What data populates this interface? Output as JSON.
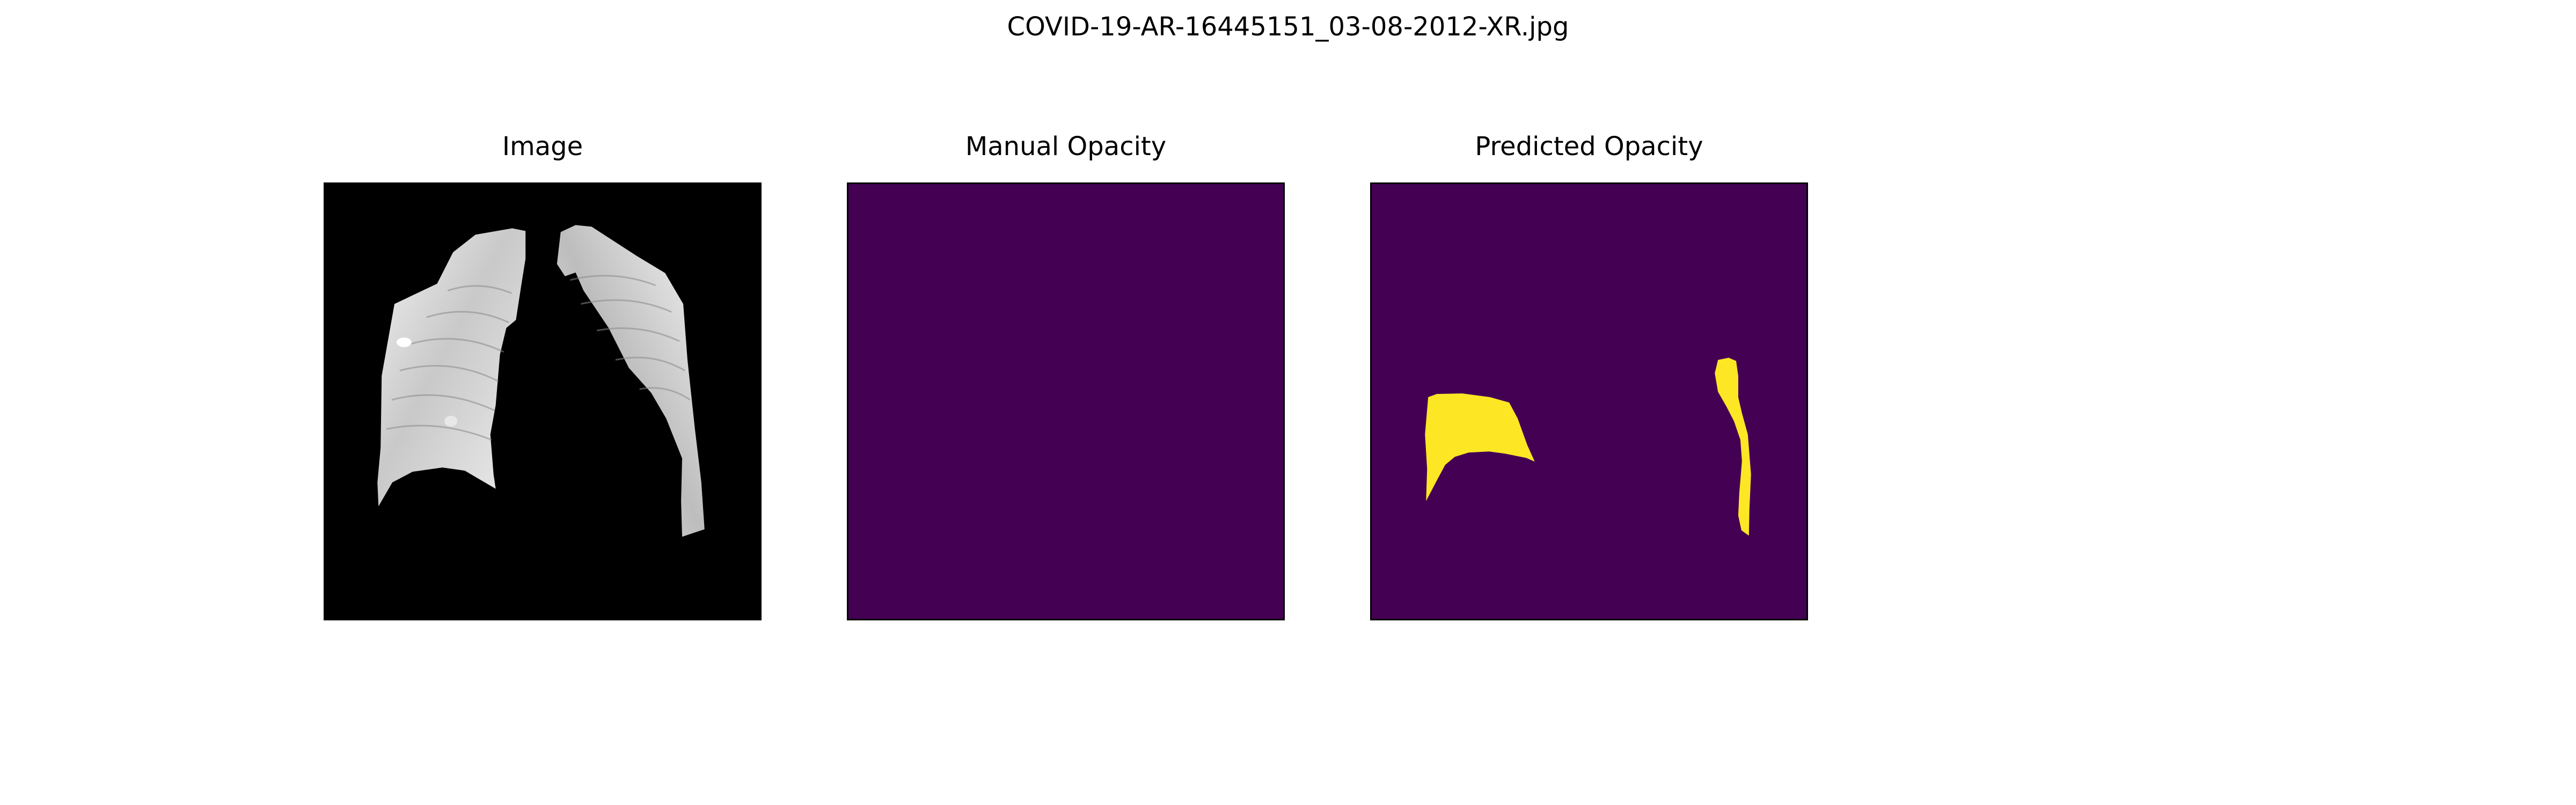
{
  "figure": {
    "title": "COVID-19-AR-16445151_03-08-2012-XR.jpg"
  },
  "panels": [
    {
      "title": "Image"
    },
    {
      "title": "Manual Opacity"
    },
    {
      "title": "Predicted Opacity"
    }
  ],
  "colors": {
    "background": "#ffffff",
    "xray_background": "#000000",
    "mask_background": "#440154",
    "mask_foreground": "#fde725",
    "frame": "#000000"
  }
}
